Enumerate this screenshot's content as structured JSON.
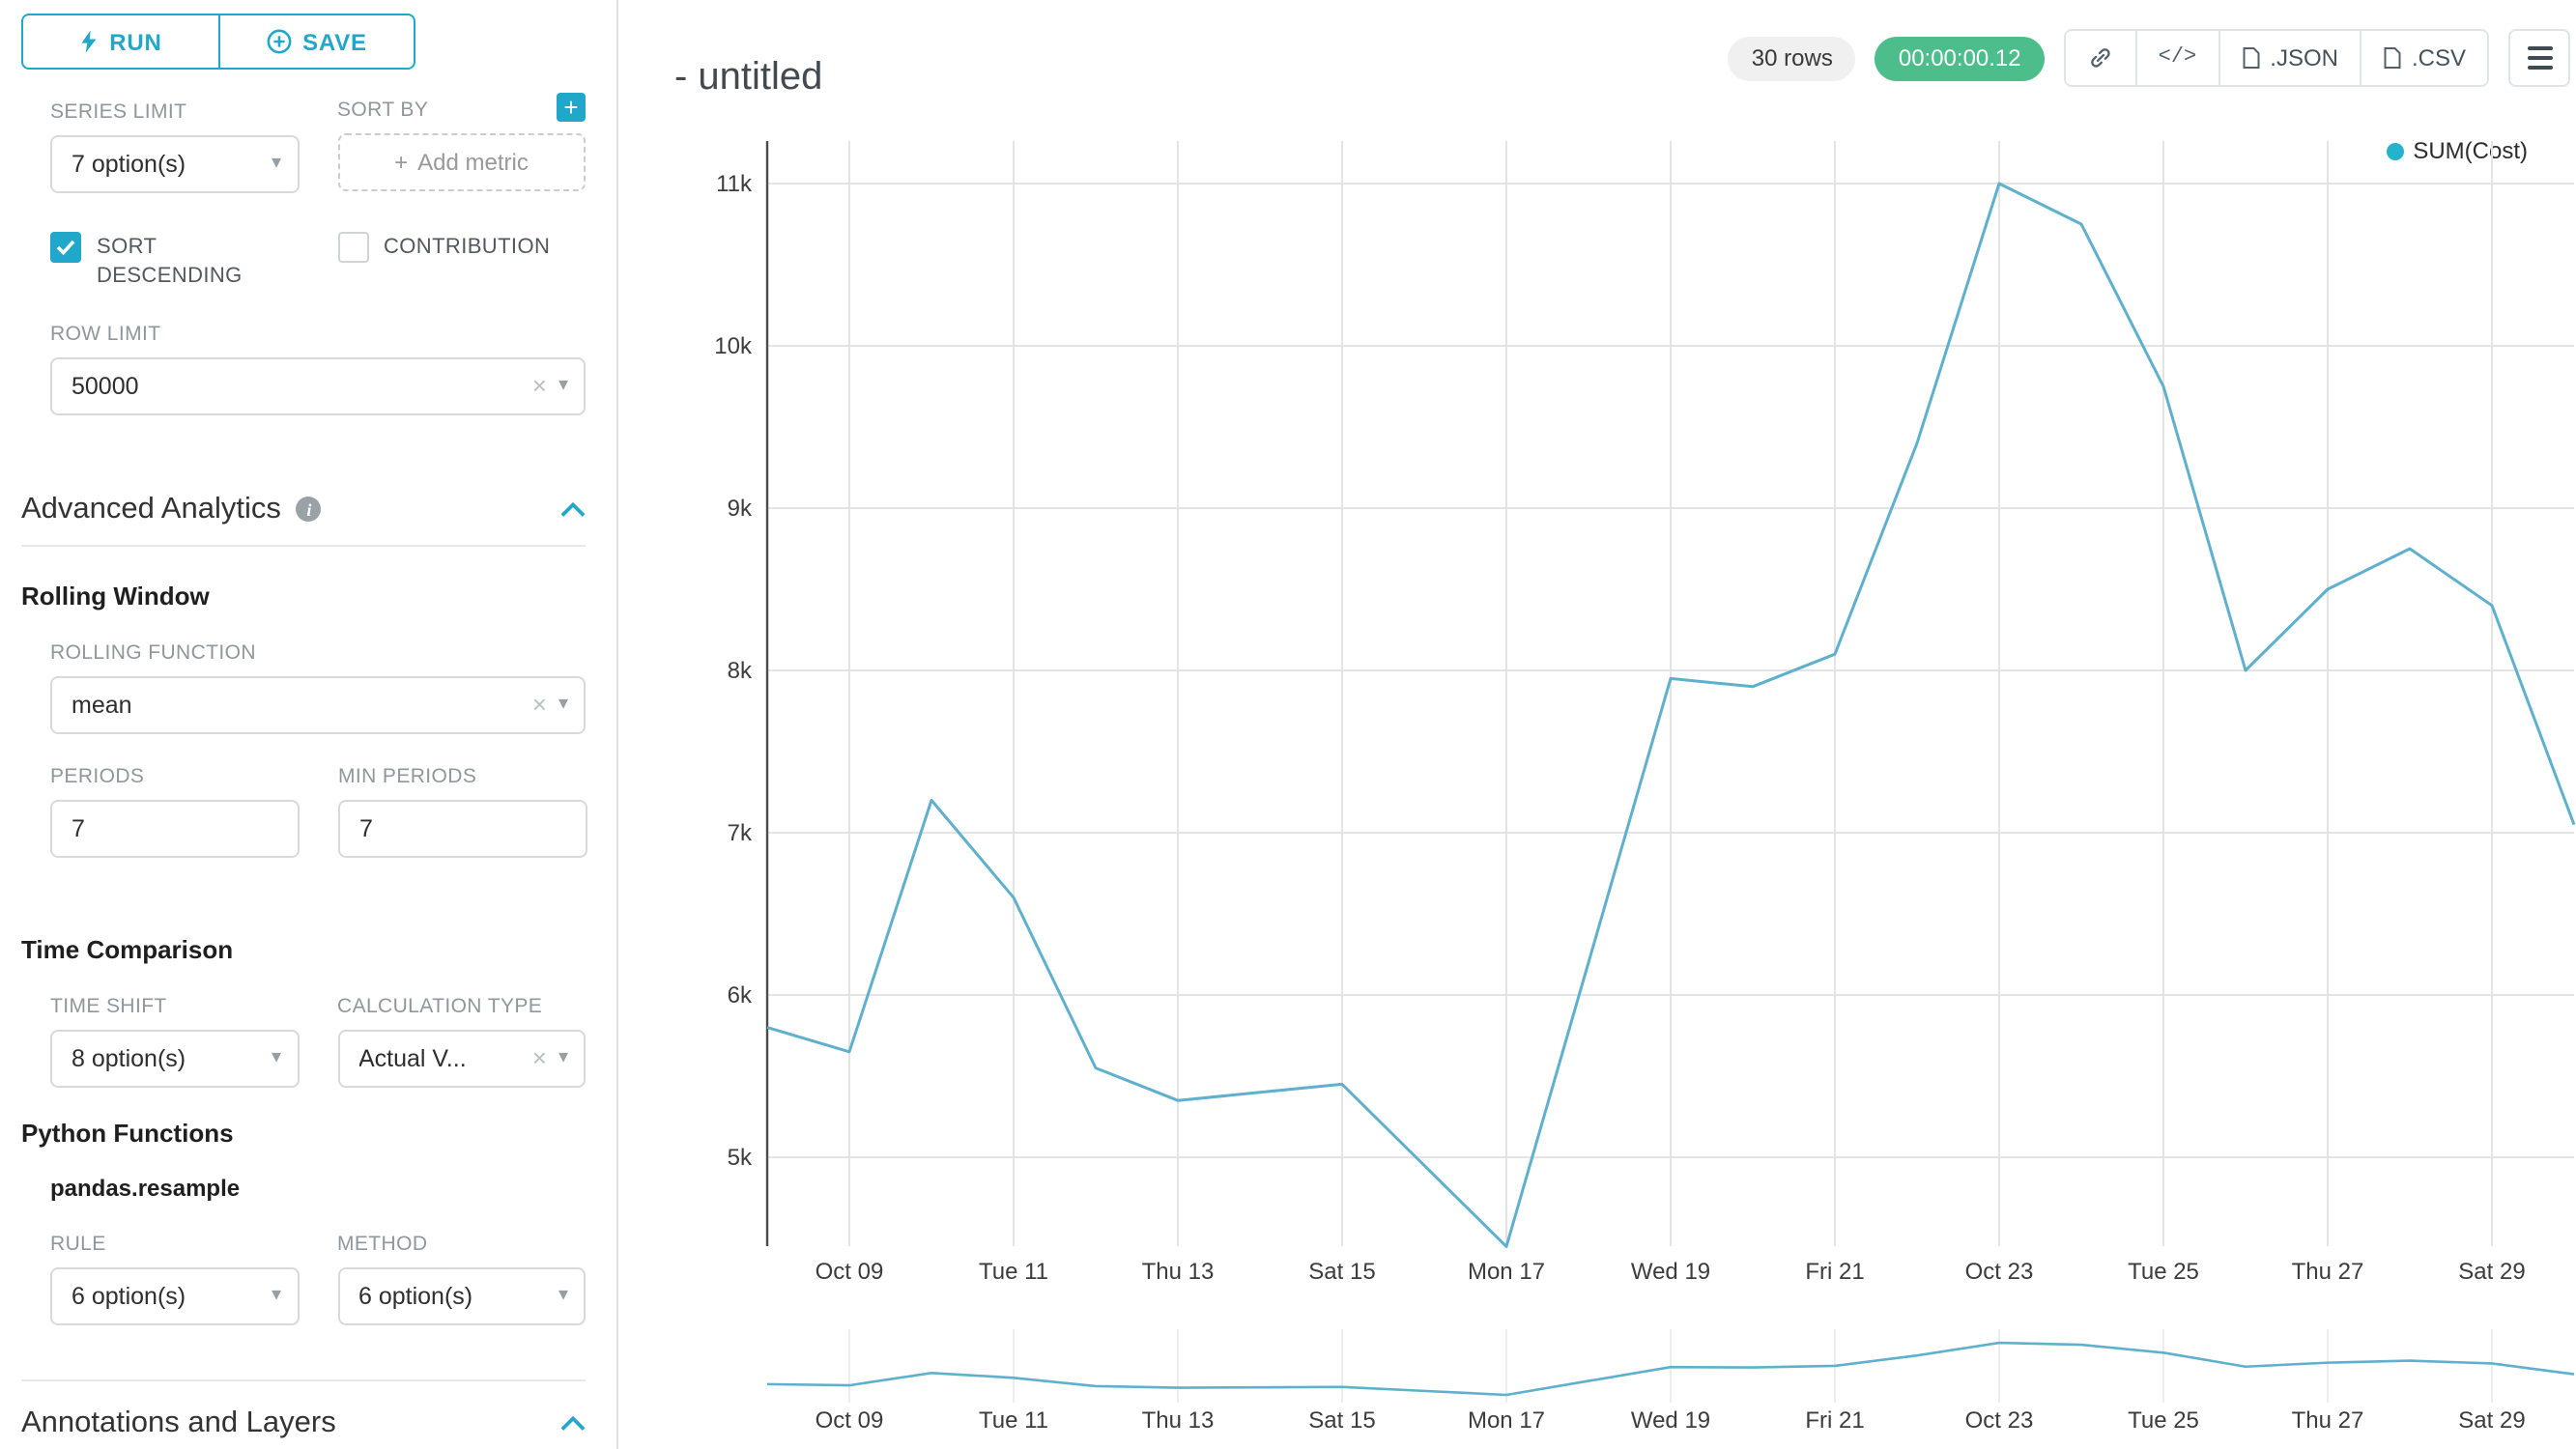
{
  "sidebar": {
    "run_label": "RUN",
    "save_label": "SAVE",
    "series_limit": {
      "label": "SERIES LIMIT",
      "value": "7 option(s)"
    },
    "sort_by": {
      "label": "SORT BY",
      "placeholder": "Add metric"
    },
    "sort_descending": {
      "label": "SORT DESCENDING",
      "checked": true
    },
    "contribution": {
      "label": "CONTRIBUTION",
      "checked": false
    },
    "row_limit": {
      "label": "ROW LIMIT",
      "value": "50000"
    },
    "advanced_analytics_title": "Advanced Analytics",
    "rolling_window_title": "Rolling Window",
    "rolling_function": {
      "label": "ROLLING FUNCTION",
      "value": "mean"
    },
    "periods": {
      "label": "PERIODS",
      "value": "7"
    },
    "min_periods": {
      "label": "MIN PERIODS",
      "value": "7"
    },
    "time_comparison_title": "Time Comparison",
    "time_shift": {
      "label": "TIME SHIFT",
      "value": "8 option(s)"
    },
    "calculation_type": {
      "label": "CALCULATION TYPE",
      "value": "Actual V..."
    },
    "python_functions_title": "Python Functions",
    "pandas_resample_label": "pandas.resample",
    "rule": {
      "label": "RULE",
      "value": "6 option(s)"
    },
    "method": {
      "label": "METHOD",
      "value": "6 option(s)"
    },
    "annotations_title": "Annotations and Layers"
  },
  "header": {
    "title": "- untitled",
    "rows_badge": "30 rows",
    "timer_badge": "00:00:00.12",
    "code_button": "</>",
    "json_button": ".JSON",
    "csv_button": ".CSV"
  },
  "colors": {
    "accent": "#20a7c9",
    "timer_green": "#4dbe8b",
    "line": "#5fb0cd",
    "legend_dot": "#25b3cc"
  },
  "chart_data": {
    "type": "line",
    "title": "- untitled",
    "legend_position": "top-right",
    "grid": true,
    "has_mini_chart": true,
    "legend_dot_color": "#25b3cc",
    "categories": [
      "Oct 08",
      "Oct 09",
      "Oct 10",
      "Oct 11",
      "Oct 12",
      "Oct 13",
      "Oct 14",
      "Oct 15",
      "Oct 16",
      "Oct 17",
      "Oct 18",
      "Oct 19",
      "Oct 20",
      "Oct 21",
      "Oct 22",
      "Oct 23",
      "Oct 24",
      "Oct 25",
      "Oct 26",
      "Oct 27",
      "Oct 28",
      "Oct 29",
      "Oct 30"
    ],
    "series": [
      {
        "name": "SUM(Cost)",
        "color": "#5fb0cd",
        "values": [
          5800,
          5650,
          7200,
          6600,
          5550,
          5350,
          5400,
          5450,
          4950,
          4450,
          6200,
          7950,
          7900,
          8100,
          9400,
          11000,
          10750,
          9750,
          8000,
          8500,
          8750,
          8400,
          7050
        ]
      }
    ],
    "x_ticks": [
      {
        "index": 1,
        "label": "Oct 09"
      },
      {
        "index": 3,
        "label": "Tue 11"
      },
      {
        "index": 5,
        "label": "Thu 13"
      },
      {
        "index": 7,
        "label": "Sat 15"
      },
      {
        "index": 9,
        "label": "Mon 17"
      },
      {
        "index": 11,
        "label": "Wed 19"
      },
      {
        "index": 13,
        "label": "Fri 21"
      },
      {
        "index": 15,
        "label": "Oct 23"
      },
      {
        "index": 17,
        "label": "Tue 25"
      },
      {
        "index": 19,
        "label": "Thu 27"
      },
      {
        "index": 21,
        "label": "Sat 29"
      }
    ],
    "y_ticks": [
      {
        "value": 5000,
        "label": "5k"
      },
      {
        "value": 6000,
        "label": "6k"
      },
      {
        "value": 7000,
        "label": "7k"
      },
      {
        "value": 8000,
        "label": "8k"
      },
      {
        "value": 9000,
        "label": "9k"
      },
      {
        "value": 10000,
        "label": "10k"
      },
      {
        "value": 11000,
        "label": "11k"
      }
    ],
    "ylim": [
      4300,
      11100
    ],
    "xlabel": "",
    "ylabel": ""
  }
}
